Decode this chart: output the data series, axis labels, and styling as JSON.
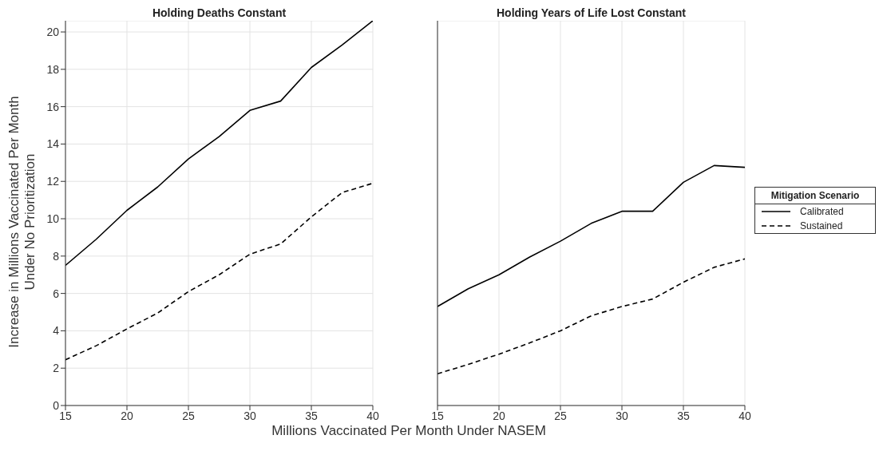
{
  "chart_data": [
    {
      "type": "line",
      "title": "Holding Deaths Constant",
      "ylabel": "Increase in Millions Vaccinated Per Month Under No Prioritization",
      "xlabel": "Millions Vaccinated Per Month Under NASEM",
      "x": [
        15,
        17.5,
        20,
        22.5,
        25,
        27.5,
        30,
        32.5,
        35,
        37.5,
        40
      ],
      "series": [
        {
          "color": "#000000",
          "line_style": "solid",
          "values": [
            7.5,
            8.9,
            10.45,
            11.7,
            13.2,
            14.4,
            15.8,
            16.3,
            18.1,
            19.3,
            20.6
          ]
        },
        {
          "color": "#000000",
          "line_style": "dashed",
          "values": [
            2.45,
            3.2,
            4.1,
            4.95,
            6.1,
            7.0,
            8.1,
            8.65,
            10.1,
            11.4,
            11.9
          ]
        }
      ],
      "xlim": [
        15,
        40
      ],
      "xticks": [
        15,
        20,
        25,
        30,
        35,
        40
      ],
      "ylim": [
        0,
        20.6
      ],
      "yticks": [
        0,
        2,
        4,
        6,
        8,
        10,
        12,
        14,
        16,
        18,
        20
      ],
      "grid": true
    },
    {
      "type": "line",
      "title": "Holding Years of Life Lost Constant",
      "x": [
        15,
        17.5,
        20,
        22.5,
        25,
        27.5,
        30,
        32.5,
        35,
        37.5,
        40
      ],
      "series": [
        {
          "name": "Calibrated",
          "color": "#000000",
          "line_style": "solid",
          "values": [
            5.3,
            6.25,
            7.0,
            7.95,
            8.8,
            9.75,
            10.4,
            10.4,
            11.95,
            12.85,
            12.75
          ]
        },
        {
          "name": "Sustained",
          "color": "#000000",
          "line_style": "dashed",
          "values": [
            1.7,
            2.2,
            2.75,
            3.35,
            4.0,
            4.8,
            5.3,
            5.7,
            6.6,
            7.4,
            7.85
          ]
        }
      ],
      "xlim": [
        15,
        40
      ],
      "xticks": [
        15,
        20,
        25,
        30,
        35,
        40
      ],
      "ylim": [
        0,
        20.6
      ],
      "yticks": [
        0,
        2,
        4,
        6,
        8,
        10,
        12,
        14,
        16,
        18,
        20
      ],
      "grid": true,
      "legend": "right",
      "legend_title": "Mitigation Scenario",
      "tick_labels": "x"
    }
  ]
}
